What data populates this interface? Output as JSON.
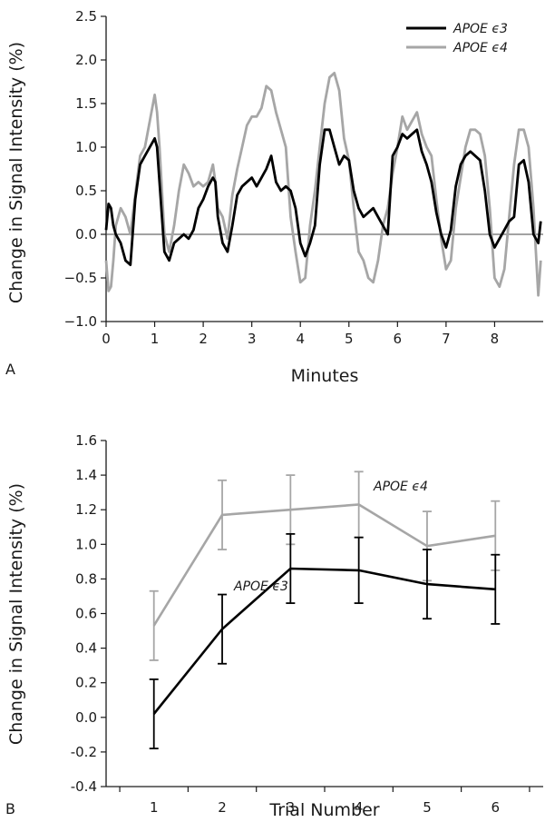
{
  "chart_data": [
    {
      "panel_label": "A",
      "type": "line",
      "xlabel": "Minutes",
      "ylabel": "Change in Signal Intensity (%)",
      "xlim": [
        0,
        9
      ],
      "ylim": [
        -1.0,
        2.5
      ],
      "xticks": [
        0,
        1,
        2,
        3,
        4,
        5,
        6,
        7,
        8
      ],
      "yticks": [
        -1.0,
        -0.5,
        0.0,
        0.5,
        1.0,
        1.5,
        2.0,
        2.5
      ],
      "ytick_labels": [
        "−1.0",
        "−0.5",
        "0.0",
        "0.5",
        "1.0",
        "1.5",
        "2.0",
        "2.5"
      ],
      "zero_line": true,
      "legend": {
        "placement": "top-right"
      },
      "series": [
        {
          "name": "APOE ϵ3",
          "color": "#000000",
          "x": [
            0,
            0.05,
            0.1,
            0.15,
            0.2,
            0.3,
            0.4,
            0.5,
            0.6,
            0.7,
            0.8,
            0.9,
            1.0,
            1.05,
            1.1,
            1.2,
            1.3,
            1.4,
            1.5,
            1.6,
            1.7,
            1.8,
            1.9,
            2.0,
            2.1,
            2.2,
            2.25,
            2.3,
            2.4,
            2.5,
            2.6,
            2.7,
            2.8,
            2.9,
            3.0,
            3.1,
            3.2,
            3.3,
            3.4,
            3.5,
            3.6,
            3.7,
            3.8,
            3.9,
            4.0,
            4.1,
            4.2,
            4.3,
            4.4,
            4.5,
            4.6,
            4.7,
            4.8,
            4.9,
            5.0,
            5.1,
            5.2,
            5.3,
            5.4,
            5.5,
            5.6,
            5.7,
            5.8,
            5.9,
            6.0,
            6.1,
            6.2,
            6.3,
            6.4,
            6.5,
            6.6,
            6.7,
            6.8,
            6.9,
            7.0,
            7.1,
            7.2,
            7.3,
            7.4,
            7.5,
            7.6,
            7.7,
            7.8,
            7.9,
            8.0,
            8.1,
            8.2,
            8.3,
            8.4,
            8.5,
            8.6,
            8.7,
            8.8,
            8.9,
            8.95
          ],
          "y": [
            0.05,
            0.35,
            0.3,
            0.1,
            0.0,
            -0.1,
            -0.3,
            -0.35,
            0.4,
            0.8,
            0.9,
            1.0,
            1.1,
            1.0,
            0.6,
            -0.2,
            -0.3,
            -0.1,
            -0.05,
            0.0,
            -0.05,
            0.05,
            0.3,
            0.4,
            0.55,
            0.65,
            0.6,
            0.2,
            -0.1,
            -0.2,
            0.1,
            0.45,
            0.55,
            0.6,
            0.65,
            0.55,
            0.65,
            0.75,
            0.9,
            0.6,
            0.5,
            0.55,
            0.5,
            0.3,
            -0.1,
            -0.25,
            -0.1,
            0.1,
            0.8,
            1.2,
            1.2,
            1.0,
            0.8,
            0.9,
            0.85,
            0.5,
            0.3,
            0.2,
            0.25,
            0.3,
            0.2,
            0.1,
            0.0,
            0.9,
            1.0,
            1.15,
            1.1,
            1.15,
            1.2,
            0.95,
            0.8,
            0.6,
            0.25,
            0.0,
            -0.15,
            0.05,
            0.55,
            0.8,
            0.9,
            0.95,
            0.9,
            0.85,
            0.5,
            0.0,
            -0.15,
            -0.05,
            0.05,
            0.15,
            0.2,
            0.8,
            0.85,
            0.6,
            0.0,
            -0.1,
            0.15
          ]
        },
        {
          "name": "APOE ϵ4",
          "color": "#a6a6a6",
          "x": [
            0,
            0.05,
            0.1,
            0.15,
            0.2,
            0.3,
            0.4,
            0.5,
            0.6,
            0.7,
            0.8,
            0.9,
            1.0,
            1.05,
            1.1,
            1.2,
            1.3,
            1.4,
            1.5,
            1.6,
            1.7,
            1.8,
            1.9,
            2.0,
            2.1,
            2.2,
            2.25,
            2.3,
            2.4,
            2.5,
            2.6,
            2.7,
            2.8,
            2.9,
            3.0,
            3.1,
            3.2,
            3.3,
            3.4,
            3.5,
            3.6,
            3.7,
            3.8,
            3.9,
            4.0,
            4.1,
            4.2,
            4.3,
            4.4,
            4.5,
            4.6,
            4.7,
            4.8,
            4.9,
            5.0,
            5.1,
            5.2,
            5.3,
            5.4,
            5.5,
            5.6,
            5.7,
            5.8,
            5.9,
            6.0,
            6.1,
            6.2,
            6.3,
            6.4,
            6.5,
            6.6,
            6.7,
            6.8,
            6.9,
            7.0,
            7.1,
            7.2,
            7.3,
            7.4,
            7.5,
            7.6,
            7.7,
            7.8,
            7.9,
            8.0,
            8.1,
            8.2,
            8.3,
            8.4,
            8.5,
            8.6,
            8.7,
            8.8,
            8.9,
            8.95
          ],
          "y": [
            -0.3,
            -0.65,
            -0.6,
            -0.3,
            0.1,
            0.3,
            0.2,
            0.0,
            0.45,
            0.9,
            1.0,
            1.3,
            1.6,
            1.4,
            1.0,
            0.0,
            -0.2,
            0.1,
            0.5,
            0.8,
            0.7,
            0.55,
            0.6,
            0.55,
            0.6,
            0.8,
            0.6,
            0.3,
            0.2,
            -0.05,
            0.45,
            0.75,
            1.0,
            1.25,
            1.35,
            1.35,
            1.45,
            1.7,
            1.65,
            1.4,
            1.2,
            1.0,
            0.2,
            -0.2,
            -0.55,
            -0.5,
            0.1,
            0.5,
            1.0,
            1.5,
            1.8,
            1.85,
            1.65,
            1.1,
            0.85,
            0.3,
            -0.2,
            -0.3,
            -0.5,
            -0.55,
            -0.3,
            0.1,
            0.3,
            0.7,
            1.0,
            1.35,
            1.2,
            1.3,
            1.4,
            1.15,
            1.0,
            0.9,
            0.4,
            -0.05,
            -0.4,
            -0.3,
            0.3,
            0.65,
            1.0,
            1.2,
            1.2,
            1.15,
            0.9,
            0.3,
            -0.5,
            -0.6,
            -0.4,
            0.2,
            0.8,
            1.2,
            1.2,
            1.0,
            0.3,
            -0.7,
            -0.3
          ]
        }
      ]
    },
    {
      "panel_label": "B",
      "type": "line",
      "xlabel": "Trial Number",
      "ylabel": "Change in Signal Intensity (%)",
      "xlim": [
        0.3,
        6.7
      ],
      "ylim": [
        -0.4,
        1.6
      ],
      "xticks": [
        1,
        2,
        3,
        4,
        5,
        6
      ],
      "yticks": [
        -0.4,
        -0.2,
        0.0,
        0.2,
        0.4,
        0.6,
        0.8,
        1.0,
        1.2,
        1.4,
        1.6
      ],
      "ytick_labels": [
        "-0.4",
        "-0.2",
        "0.0",
        "0.2",
        "0.4",
        "0.6",
        "0.8",
        "1.0",
        "1.2",
        "1.4",
        "1.6"
      ],
      "error_bars": true,
      "series": [
        {
          "name": "APOE ϵ4",
          "color": "#a6a6a6",
          "x": [
            1,
            2,
            3,
            4,
            5,
            6
          ],
          "y": [
            0.53,
            1.17,
            1.2,
            1.23,
            0.99,
            1.05
          ],
          "error": [
            0.2,
            0.2,
            0.2,
            0.19,
            0.2,
            0.2
          ]
        },
        {
          "name": "APOE ϵ3",
          "color": "#000000",
          "x": [
            1,
            2,
            3,
            4,
            5,
            6
          ],
          "y": [
            0.02,
            0.51,
            0.86,
            0.85,
            0.77,
            0.74
          ],
          "error": [
            0.2,
            0.2,
            0.2,
            0.19,
            0.2,
            0.2
          ]
        }
      ]
    }
  ]
}
